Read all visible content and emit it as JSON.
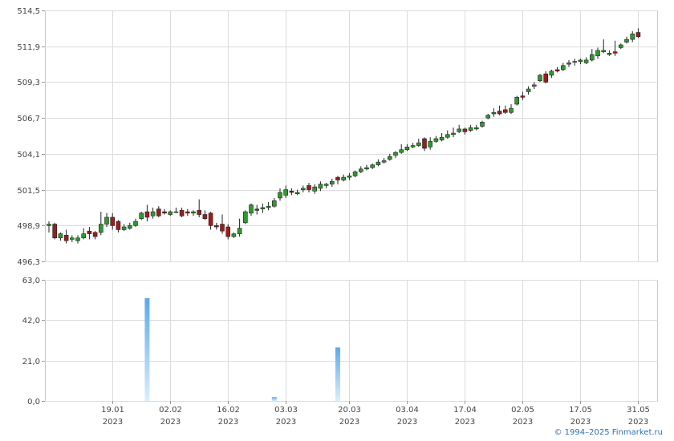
{
  "chart_data": [
    {
      "type": "candlestick",
      "ylim": [
        496.3,
        514.5
      ],
      "y_ticks": [
        "514,5",
        "511,9",
        "509,3",
        "506,7",
        "504,1",
        "501,5",
        "498,9",
        "496,3"
      ],
      "grid": true,
      "colors": {
        "up": "#2e9a2e",
        "down": "#9e1b1b",
        "wick": "#222222"
      },
      "candles": [
        [
          498.9,
          499.0,
          498.4,
          499.2
        ],
        [
          499.0,
          498.0,
          497.9,
          499.1
        ],
        [
          498.0,
          498.3,
          497.8,
          498.4
        ],
        [
          498.2,
          497.8,
          497.6,
          498.6
        ],
        [
          497.9,
          498.0,
          497.7,
          498.2
        ],
        [
          497.8,
          498.0,
          497.6,
          498.2
        ],
        [
          498.0,
          498.3,
          497.9,
          498.7
        ],
        [
          498.5,
          498.3,
          497.9,
          498.8
        ],
        [
          498.4,
          498.1,
          497.9,
          498.5
        ],
        [
          498.4,
          499.0,
          498.2,
          499.9
        ],
        [
          499.0,
          499.5,
          498.8,
          499.8
        ],
        [
          499.5,
          498.9,
          498.6,
          499.8
        ],
        [
          499.2,
          498.6,
          498.4,
          499.3
        ],
        [
          498.6,
          498.8,
          498.5,
          499.0
        ],
        [
          498.7,
          498.9,
          498.6,
          499.1
        ],
        [
          498.9,
          499.2,
          498.8,
          499.4
        ],
        [
          499.4,
          499.8,
          499.3,
          499.9
        ],
        [
          499.9,
          499.5,
          499.2,
          500.4
        ],
        [
          499.6,
          499.9,
          499.4,
          500.2
        ],
        [
          500.1,
          499.6,
          499.5,
          500.3
        ],
        [
          499.9,
          499.8,
          499.7,
          500.1
        ],
        [
          499.7,
          499.9,
          499.6,
          500.0
        ],
        [
          499.9,
          499.9,
          499.8,
          500.2
        ],
        [
          500.0,
          499.6,
          499.5,
          500.2
        ],
        [
          499.9,
          499.8,
          499.6,
          500.1
        ],
        [
          499.8,
          499.9,
          499.6,
          500.0
        ],
        [
          500.0,
          499.7,
          499.5,
          500.8
        ],
        [
          499.7,
          499.4,
          499.3,
          500.0
        ],
        [
          499.8,
          498.9,
          498.6,
          499.9
        ],
        [
          498.9,
          498.8,
          498.6,
          499.1
        ],
        [
          499.0,
          498.5,
          498.3,
          499.7
        ],
        [
          498.8,
          498.1,
          497.9,
          499.0
        ],
        [
          498.1,
          498.3,
          498.0,
          498.4
        ],
        [
          498.3,
          498.7,
          498.1,
          499.4
        ],
        [
          499.1,
          499.9,
          499.0,
          500.0
        ],
        [
          499.8,
          500.4,
          499.6,
          500.5
        ],
        [
          500.1,
          500.0,
          499.7,
          500.4
        ],
        [
          500.1,
          500.2,
          499.8,
          500.5
        ],
        [
          500.2,
          500.3,
          500.0,
          500.6
        ],
        [
          500.3,
          500.7,
          500.2,
          500.9
        ],
        [
          500.9,
          501.3,
          500.7,
          501.6
        ],
        [
          501.1,
          501.5,
          500.9,
          501.8
        ],
        [
          501.4,
          501.3,
          501.1,
          501.6
        ],
        [
          501.2,
          501.3,
          501.1,
          501.5
        ],
        [
          501.5,
          501.6,
          501.3,
          501.8
        ],
        [
          501.8,
          501.5,
          501.3,
          502.0
        ],
        [
          501.4,
          501.7,
          501.2,
          501.9
        ],
        [
          501.6,
          501.9,
          501.4,
          502.1
        ],
        [
          501.8,
          501.9,
          501.6,
          502.0
        ],
        [
          501.9,
          502.1,
          501.7,
          502.3
        ],
        [
          502.4,
          502.2,
          501.9,
          502.5
        ],
        [
          502.2,
          502.4,
          502.1,
          502.6
        ],
        [
          502.4,
          502.5,
          502.2,
          502.7
        ],
        [
          502.5,
          502.8,
          502.4,
          502.9
        ],
        [
          502.8,
          503.0,
          502.7,
          503.2
        ],
        [
          503.0,
          503.1,
          502.9,
          503.3
        ],
        [
          503.1,
          503.3,
          503.0,
          503.4
        ],
        [
          503.3,
          503.5,
          503.2,
          503.7
        ],
        [
          503.5,
          503.6,
          503.4,
          503.8
        ],
        [
          503.7,
          503.9,
          503.6,
          504.1
        ],
        [
          504.0,
          504.2,
          503.8,
          504.3
        ],
        [
          504.2,
          504.4,
          504.1,
          504.8
        ],
        [
          504.4,
          504.6,
          504.3,
          504.8
        ],
        [
          504.6,
          504.7,
          504.5,
          504.9
        ],
        [
          504.7,
          504.9,
          504.6,
          505.2
        ],
        [
          505.2,
          504.5,
          504.3,
          505.3
        ],
        [
          504.6,
          505.0,
          504.4,
          505.3
        ],
        [
          505.0,
          505.2,
          504.9,
          505.4
        ],
        [
          505.1,
          505.3,
          505.0,
          505.6
        ],
        [
          505.3,
          505.5,
          505.2,
          505.8
        ],
        [
          505.5,
          505.6,
          505.3,
          506.0
        ],
        [
          505.7,
          505.9,
          505.6,
          506.2
        ],
        [
          505.9,
          505.7,
          505.5,
          506.0
        ],
        [
          505.8,
          506.0,
          505.7,
          506.2
        ],
        [
          505.9,
          506.0,
          505.8,
          506.2
        ],
        [
          506.1,
          506.4,
          506.0,
          506.5
        ],
        [
          506.7,
          506.9,
          506.6,
          507.0
        ],
        [
          507.0,
          507.1,
          506.8,
          507.4
        ],
        [
          507.2,
          507.0,
          506.9,
          507.6
        ],
        [
          507.3,
          507.1,
          507.0,
          507.6
        ],
        [
          507.1,
          507.4,
          507.0,
          507.7
        ],
        [
          507.7,
          508.2,
          507.6,
          508.3
        ],
        [
          508.3,
          508.2,
          508.0,
          508.6
        ],
        [
          508.6,
          508.8,
          508.4,
          509.0
        ],
        [
          509.0,
          509.1,
          508.8,
          509.3
        ],
        [
          509.4,
          509.8,
          509.3,
          509.9
        ],
        [
          509.9,
          509.3,
          509.2,
          510.1
        ],
        [
          509.8,
          510.1,
          509.6,
          510.2
        ],
        [
          510.2,
          510.1,
          510.0,
          510.4
        ],
        [
          510.2,
          510.5,
          510.1,
          510.7
        ],
        [
          510.6,
          510.7,
          510.4,
          510.9
        ],
        [
          510.8,
          510.8,
          510.5,
          511.0
        ],
        [
          510.8,
          510.9,
          510.6,
          511.0
        ],
        [
          510.7,
          510.9,
          510.6,
          511.1
        ],
        [
          510.9,
          511.3,
          510.8,
          511.7
        ],
        [
          511.2,
          511.6,
          511.0,
          511.8
        ],
        [
          511.5,
          511.6,
          511.4,
          512.4
        ],
        [
          511.3,
          511.4,
          511.2,
          511.6
        ],
        [
          511.5,
          511.4,
          511.2,
          512.3
        ],
        [
          511.8,
          512.0,
          511.7,
          512.1
        ],
        [
          512.2,
          512.4,
          512.1,
          512.6
        ],
        [
          512.4,
          512.8,
          512.2,
          513.0
        ],
        [
          512.9,
          512.6,
          512.5,
          513.2
        ]
      ]
    },
    {
      "type": "bar",
      "ylim": [
        0,
        63
      ],
      "y_ticks": [
        "63,0",
        "42,0",
        "21,0",
        "0,0"
      ],
      "bars": [
        {
          "index": 17,
          "value": 53.5
        },
        {
          "index": 39,
          "value": 2.0
        },
        {
          "index": 50,
          "value": 27.8
        }
      ],
      "bar_color": "#5aaae8"
    }
  ],
  "x_axis": {
    "dates": [
      "19.01",
      "02.02",
      "16.02",
      "03.03",
      "20.03",
      "03.04",
      "17.04",
      "02.05",
      "17.05",
      "31.05"
    ],
    "years": [
      "2023",
      "2023",
      "2023",
      "2023",
      "2023",
      "2023",
      "2023",
      "2023",
      "2023",
      "2023"
    ],
    "gridline_index": [
      11,
      21,
      31,
      41,
      52,
      62,
      72,
      82,
      92,
      102
    ]
  },
  "copyright": "© 1994–2025 Finmarket.ru"
}
